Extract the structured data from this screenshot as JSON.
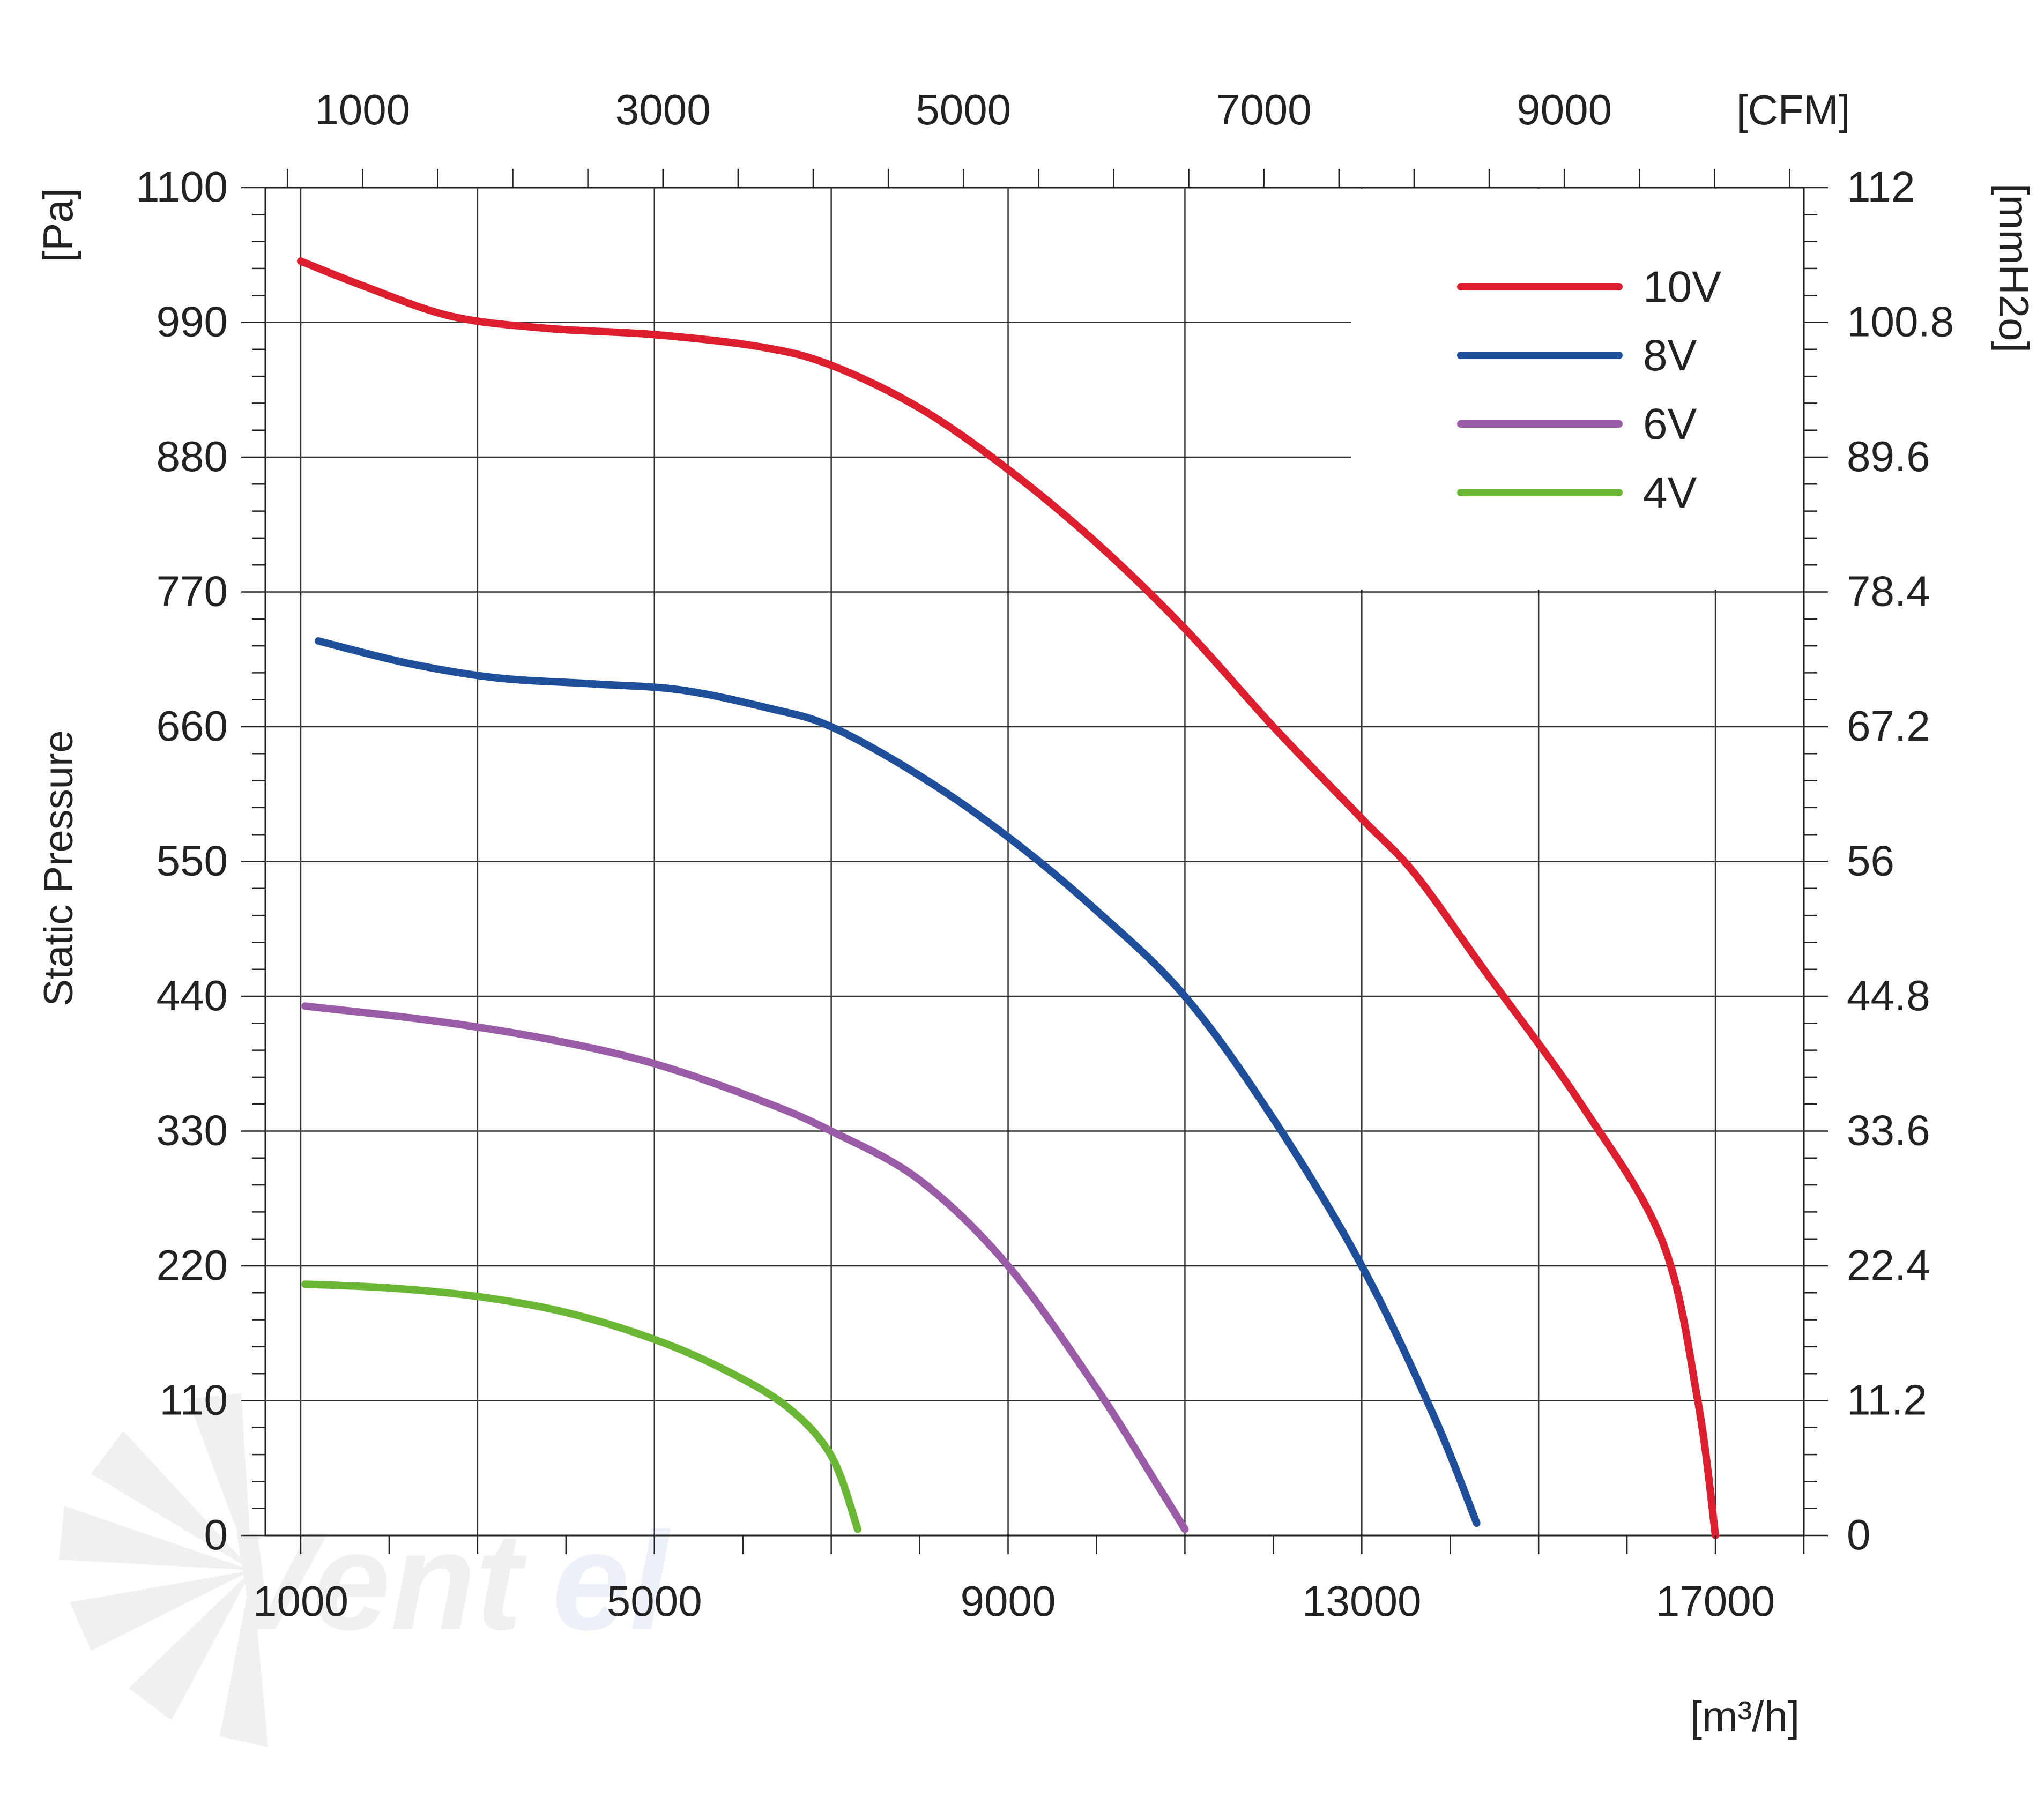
{
  "chart_data": {
    "type": "line",
    "ylabel": "Static Pressure",
    "y_unit_left": "[Pa]",
    "y_unit_right": "[mmH2o]",
    "x_unit_bottom": "[m³/h]",
    "x_unit_top": "[CFM]",
    "xlim": [
      600,
      18000
    ],
    "ylim": [
      0,
      1100
    ],
    "x_ticks": [
      "1000",
      "5000",
      "9000",
      "13000",
      "17000"
    ],
    "x_tick_values": [
      1000,
      5000,
      9000,
      13000,
      17000
    ],
    "y_ticks_left": [
      "0",
      "110",
      "220",
      "330",
      "440",
      "550",
      "660",
      "770",
      "880",
      "990",
      "1100"
    ],
    "y_tick_values": [
      0,
      110,
      220,
      330,
      440,
      550,
      660,
      770,
      880,
      990,
      1100
    ],
    "y_ticks_right": [
      "0",
      "11.2",
      "22.4",
      "33.6",
      "44.8",
      "56",
      "67.2",
      "78.4",
      "89.6",
      "100.8",
      "112"
    ],
    "x_ticks_top": [
      "1000",
      "3000",
      "5000",
      "7000",
      "9000"
    ],
    "x_ticks_top_cfm": [
      1000,
      3000,
      5000,
      7000,
      9000
    ],
    "legend_position": "top-right",
    "grid": true,
    "series": [
      {
        "name": "10V",
        "color": "#dd1e2f",
        "x": [
          1000,
          1700,
          2700,
          3800,
          5000,
          6200,
          7000,
          8000,
          9000,
          10000,
          11000,
          12000,
          13000,
          13600,
          14400,
          15500,
          16400,
          16800,
          17000
        ],
        "y": [
          1040,
          1020,
          995,
          985,
          980,
          970,
          955,
          920,
          870,
          810,
          740,
          660,
          585,
          540,
          460,
          350,
          240,
          110,
          0
        ]
      },
      {
        "name": "8V",
        "color": "#1f4f9b",
        "x": [
          1200,
          2200,
          3200,
          4300,
          5300,
          6300,
          7000,
          8000,
          9000,
          10000,
          11000,
          12000,
          13000,
          13800,
          14300
        ],
        "y": [
          730,
          712,
          700,
          695,
          690,
          675,
          660,
          620,
          570,
          510,
          440,
          340,
          220,
          100,
          10
        ]
      },
      {
        "name": "6V",
        "color": "#9a5ca6",
        "x": [
          1050,
          2500,
          3800,
          5000,
          6200,
          7000,
          8000,
          9000,
          10000,
          10700,
          11000
        ],
        "y": [
          432,
          420,
          405,
          385,
          355,
          330,
          290,
          220,
          120,
          40,
          5
        ]
      },
      {
        "name": "4V",
        "color": "#6ab735",
        "x": [
          1050,
          2000,
          3000,
          4000,
          5000,
          5800,
          6500,
          7000,
          7300
        ],
        "y": [
          205,
          202,
          195,
          182,
          160,
          135,
          105,
          65,
          5
        ]
      }
    ]
  }
}
